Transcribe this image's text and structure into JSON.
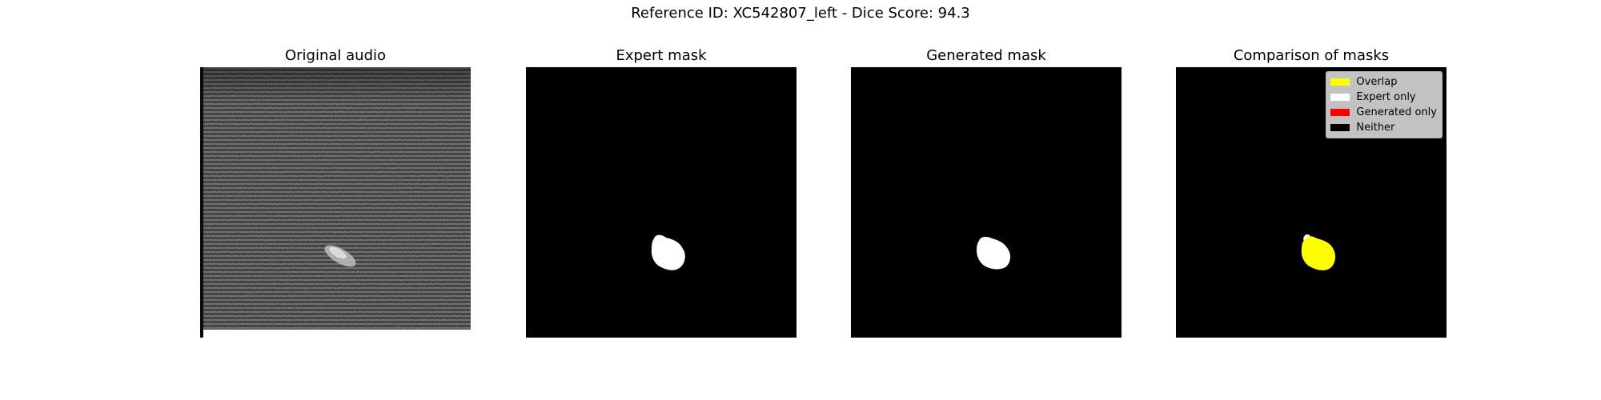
{
  "figure": {
    "suptitle": "Reference ID: XC542807_left - Dice Score: 94.3",
    "panels": [
      {
        "title": "Original audio"
      },
      {
        "title": "Expert mask"
      },
      {
        "title": "Generated mask"
      },
      {
        "title": "Comparison of masks"
      }
    ],
    "legend": {
      "items": [
        {
          "label": "Overlap",
          "color": "#ffff00"
        },
        {
          "label": "Expert only",
          "color": "#ffffff"
        },
        {
          "label": "Generated only",
          "color": "#ff0000"
        },
        {
          "label": "Neither",
          "color": "#000000"
        }
      ]
    },
    "colors": {
      "background": "#ffffff",
      "mask": "#ffffff",
      "overlap": "#ffff00",
      "neither": "#000000"
    }
  }
}
